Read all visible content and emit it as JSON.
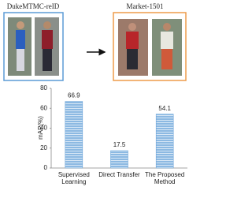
{
  "source_label": "DukeMTMC-reID",
  "target_label": "Market-1501",
  "chart_data": {
    "type": "bar",
    "y_label": "mAP(%)",
    "categories": [
      "Supervised Learning",
      "Direct Transfer",
      "The Proposed Method"
    ],
    "values": [
      66.9,
      17.5,
      54.1
    ],
    "color": "#5b9bd5",
    "ylim": [
      0,
      80
    ],
    "yticks": [
      0,
      20,
      40,
      60,
      80
    ],
    "grid": false
  }
}
